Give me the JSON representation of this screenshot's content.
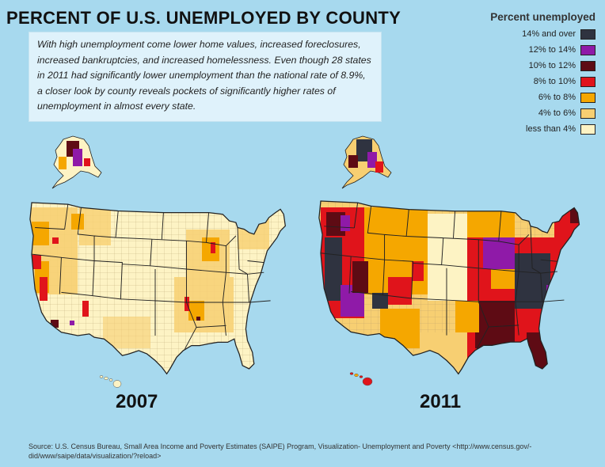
{
  "title": "PERCENT OF U.S. UNEMPLOYED BY COUNTY",
  "intro": "With high unemployment come lower home values, increased foreclosures, increased bankruptcies, and increased homelessness. Even though 28 states in 2011 had significantly lower unemployment than the national rate of 8.9%, a closer look by county reveals pockets of significantly higher rates of unemployment in almost every state.",
  "legend": {
    "title": "Percent unemployed",
    "items": [
      {
        "label": "14% and over",
        "color": "#2f3340"
      },
      {
        "label": "12% to 14%",
        "color": "#8f1aa8"
      },
      {
        "label": "10% to 12%",
        "color": "#5e0b14"
      },
      {
        "label": "8% to 10%",
        "color": "#e0141b"
      },
      {
        "label": "6% to 8%",
        "color": "#f5a700"
      },
      {
        "label": "4% to 6%",
        "color": "#f7cf72"
      },
      {
        "label": "less than 4%",
        "color": "#fdf3c4"
      }
    ]
  },
  "maps": [
    {
      "year": "2007"
    },
    {
      "year": "2011"
    }
  ],
  "source": "Source: U.S. Census Bureau, Small Area Income and Poverty Estimates (SAIPE) Program, Visualization- Unemployment and Poverty <http://www.census.gov/-did/www/saipe/data/visualization/?reload>"
}
